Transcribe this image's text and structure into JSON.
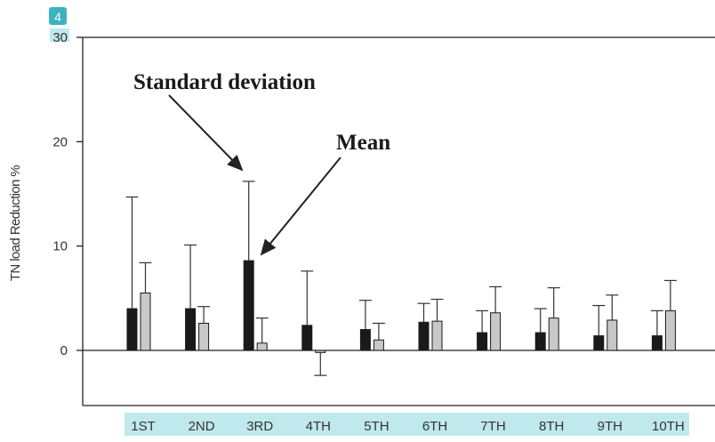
{
  "page_badge": "4",
  "chart_data": {
    "type": "bar",
    "ylabel": "TN load Reduction %",
    "xlabel": "",
    "ylim": [
      -5,
      30
    ],
    "yticks": [
      "0",
      "10",
      "20",
      "30"
    ],
    "categories": [
      "1ST",
      "2ND",
      "3RD",
      "4TH",
      "5TH",
      "6TH",
      "7TH",
      "8TH",
      "9TH",
      "10TH"
    ],
    "series": [
      {
        "color": "#1a1a1a",
        "values": [
          4.0,
          4.0,
          8.6,
          2.4,
          2.0,
          2.7,
          1.7,
          1.7,
          1.4,
          1.4
        ],
        "error": [
          10.7,
          6.1,
          7.6,
          5.2,
          2.8,
          1.8,
          2.1,
          2.3,
          2.9,
          2.4
        ]
      },
      {
        "color": "#c8c8c8",
        "values": [
          5.5,
          2.6,
          0.7,
          -0.2,
          1.0,
          2.8,
          3.6,
          3.1,
          2.9,
          3.8
        ],
        "error": [
          2.9,
          1.6,
          2.4,
          2.2,
          1.6,
          2.1,
          2.5,
          2.9,
          2.4,
          2.9
        ]
      }
    ],
    "annotations": [
      {
        "text": "Standard deviation",
        "points_to": "3RD series 1 error bar cap"
      },
      {
        "text": "Mean",
        "points_to": "3RD series 1 bar top"
      }
    ],
    "highlight_color": "#bfe9ec",
    "badge_color": "#3bb3bf"
  }
}
